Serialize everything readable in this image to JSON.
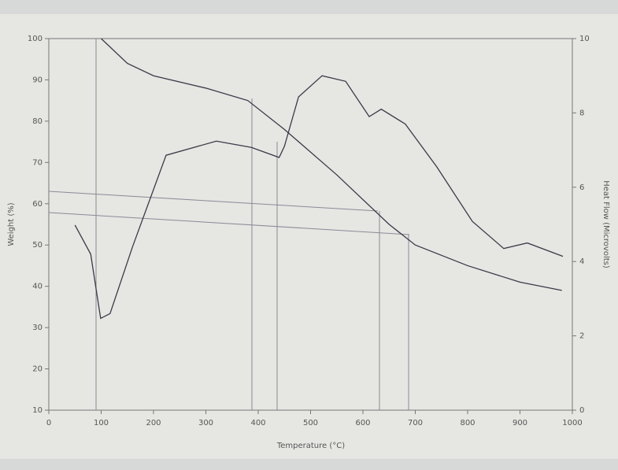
{
  "chart_data": {
    "type": "line",
    "x_label": "Temperature (°C)",
    "y_label": "Weight (%)",
    "y2_label": "Heat Flow (Microvolts)",
    "xlim": [
      0,
      1000
    ],
    "xticks": [
      0,
      100,
      200,
      300,
      400,
      500,
      600,
      700,
      800,
      900,
      1000
    ],
    "ylim": [
      10,
      100
    ],
    "yticks": [
      10,
      20,
      30,
      40,
      50,
      60,
      70,
      80,
      90,
      100
    ],
    "y2lim": [
      0,
      10
    ],
    "y2ticks": [
      0,
      2,
      4,
      6,
      8,
      10
    ],
    "series": [
      {
        "color": "#3a3a48",
        "x": [
          100,
          150,
          200,
          300,
          380,
          450,
          550,
          650,
          700,
          800,
          900,
          980
        ],
        "values": [
          100,
          94,
          91,
          88,
          85,
          78,
          67,
          55,
          50,
          45,
          41,
          39
        ]
      },
      {
        "color": "#3a3a48",
        "axis": "y2",
        "x": [
          50,
          80,
          99,
          117,
          160,
          224,
          320,
          387,
          440,
          450,
          477,
          522,
          567,
          612,
          635,
          681,
          741,
          809,
          869,
          914,
          982
        ],
        "values": [
          4.98,
          4.2,
          2.47,
          2.6,
          4.4,
          6.86,
          7.24,
          7.07,
          6.8,
          7.1,
          8.43,
          9.0,
          8.85,
          7.9,
          8.1,
          7.7,
          6.55,
          5.08,
          4.35,
          4.5,
          4.14
        ]
      }
    ]
  }
}
